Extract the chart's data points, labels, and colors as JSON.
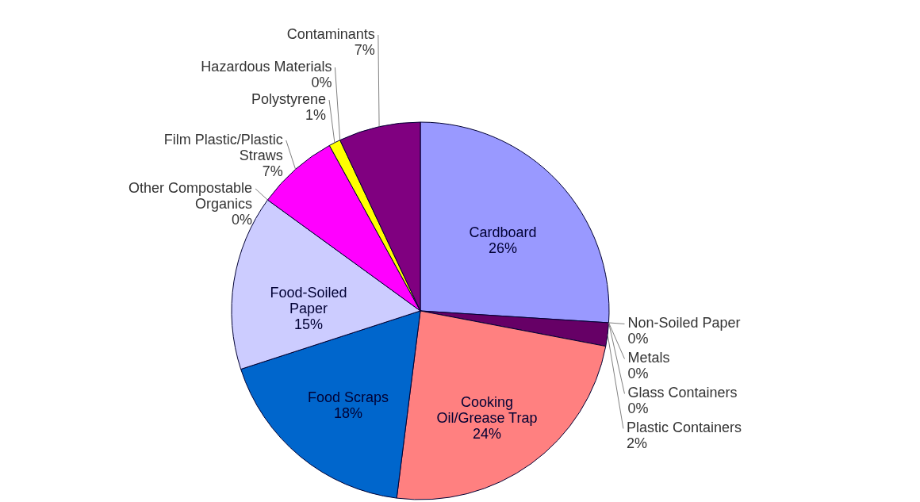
{
  "chart_data": {
    "type": "pie",
    "categories": [
      "Cardboard",
      "Non-Soiled Paper",
      "Metals",
      "Glass Containers",
      "Plastic Containers",
      "Cooking Oil/Grease Trap",
      "Food Scraps",
      "Food-Soiled Paper",
      "Other Compostable Organics",
      "Film Plastic/Plastic Straws",
      "Polystyrene",
      "Hazardous Materials",
      "Contaminants"
    ],
    "values": [
      26,
      0,
      0,
      0,
      2,
      24,
      18,
      15,
      0,
      7,
      1,
      0,
      7
    ],
    "value_labels": [
      "26%",
      "0%",
      "0%",
      "0%",
      "2%",
      "24%",
      "18%",
      "15%",
      "0%",
      "7%",
      "1%",
      "0%",
      "7%"
    ],
    "colors": [
      "#9999ff",
      "#ffffcc",
      "#ccffff",
      "#00ffff",
      "#660066",
      "#ff8080",
      "#0066cc",
      "#ccccff",
      "#000080",
      "#ff00ff",
      "#ffff00",
      "#00ffff",
      "#800080"
    ]
  }
}
